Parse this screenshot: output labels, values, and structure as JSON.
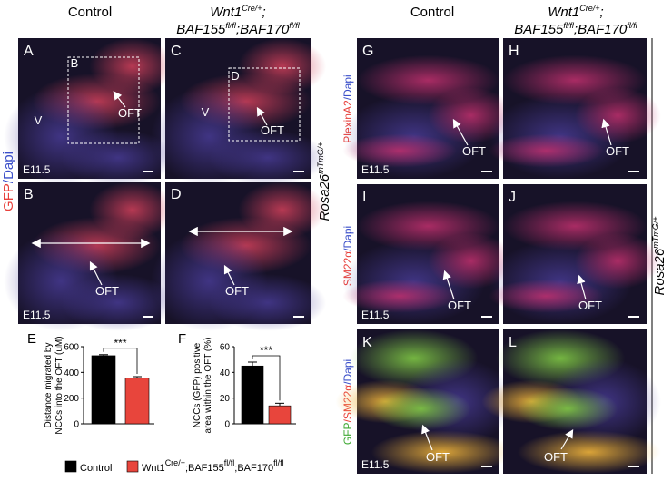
{
  "headers": {
    "left_control": "Control",
    "left_mutant_1": [
      "Wnt1",
      "Cre/+",
      ";"
    ],
    "left_mutant_2": [
      "BAF155",
      "fl/fl",
      ";BAF170",
      "fl/fl"
    ],
    "right_control": "Control",
    "right_mutant_1": [
      "Wnt1",
      "Cre/+",
      ";"
    ],
    "right_mutant_2": [
      "BAF155",
      "fl/fl",
      ";BAF170",
      "fl/fl"
    ]
  },
  "side_labels": {
    "gfp_dapi": [
      "GFP",
      "/Dapi"
    ],
    "rosa_left": [
      "Rosa26",
      "mTmG/+"
    ],
    "plexin_dapi": [
      "PlexinA2",
      "/Dapi"
    ],
    "sm22_dapi": [
      "SM22α",
      "/Dapi"
    ],
    "gfp_sm22_dapi": [
      "GFP",
      "/SM22α",
      "/Dapi"
    ],
    "rosa_right": [
      "Rosa26",
      "mTmG/+"
    ]
  },
  "panels": [
    {
      "letter": "A",
      "labels": [
        "B",
        "V",
        "OFT"
      ],
      "stage": "E11.5"
    },
    {
      "letter": "C",
      "labels": [
        "D",
        "V",
        "OFT"
      ]
    },
    {
      "letter": "B",
      "labels": [
        "OFT"
      ],
      "stage": "E11.5"
    },
    {
      "letter": "D",
      "labels": [
        "OFT"
      ]
    },
    {
      "letter": "G",
      "labels": [
        "OFT"
      ],
      "stage": "E11.5"
    },
    {
      "letter": "H",
      "labels": [
        "OFT"
      ]
    },
    {
      "letter": "I",
      "labels": [
        "OFT"
      ],
      "stage": "E11.5"
    },
    {
      "letter": "J",
      "labels": [
        "OFT"
      ]
    },
    {
      "letter": "K",
      "labels": [
        "OFT"
      ],
      "stage": "E11.5"
    },
    {
      "letter": "L",
      "labels": [
        "OFT"
      ]
    }
  ],
  "chart_data": [
    {
      "type": "bar",
      "letter": "E",
      "y_label": [
        "Distance migrated by",
        "NCCs into the OFT (uM)"
      ],
      "ylim": [
        0,
        600
      ],
      "yticks": [
        0,
        200,
        400,
        600
      ],
      "series": [
        {
          "color": "#000000",
          "values": [
            530
          ],
          "errors": [
            8
          ]
        },
        {
          "color": "#e8453c",
          "values": [
            355
          ],
          "errors": [
            12
          ]
        }
      ],
      "significance": "***"
    },
    {
      "type": "bar",
      "letter": "F",
      "y_label": [
        "NCCs (GFP) positive",
        "area within the OFT (%)"
      ],
      "ylim": [
        0,
        60
      ],
      "yticks": [
        0,
        20,
        40,
        60
      ],
      "series": [
        {
          "color": "#000000",
          "values": [
            45
          ],
          "errors": [
            3
          ]
        },
        {
          "color": "#e8453c",
          "values": [
            14
          ],
          "errors": [
            2
          ]
        }
      ],
      "significance": "***"
    }
  ],
  "legend": {
    "items": [
      {
        "color": "#000000",
        "parts": [
          "Control"
        ]
      },
      {
        "color": "#e8453c",
        "parts": [
          "Wnt1",
          "Cre/+",
          ";BAF155",
          "fl/fl",
          ";BAF170",
          "fl/fl"
        ]
      }
    ]
  }
}
